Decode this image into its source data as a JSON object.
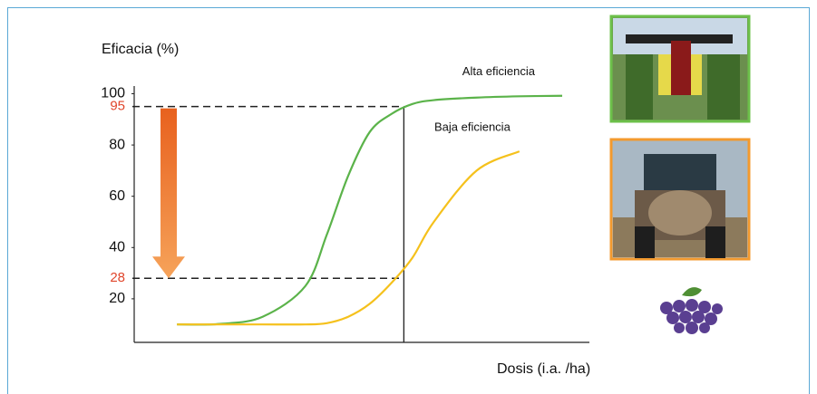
{
  "chart_data": {
    "type": "line",
    "y_label": "Eficacia (%)",
    "x_label": "Dosis (i.a. /ha)",
    "x": [
      1,
      2,
      3,
      4,
      4.5,
      5,
      5.5,
      6,
      6.5,
      7,
      8,
      9,
      10
    ],
    "series": [
      {
        "name": "Alta eficiencia",
        "color": "#5bb34a",
        "values": [
          10,
          10.2,
          13,
          25,
          45,
          68,
          85,
          92,
          96,
          97.5,
          98.5,
          99,
          99.2
        ]
      },
      {
        "name": "Baja eficiencia",
        "color": "#f5c11c",
        "values": [
          10,
          10,
          10,
          10,
          10.5,
          13,
          18,
          26,
          36,
          50,
          70,
          77.5,
          null
        ]
      }
    ],
    "xlim": [
      0,
      10
    ],
    "ylim": [
      3,
      103
    ],
    "yticks": [
      20,
      40,
      60,
      80,
      100
    ],
    "reference_lines": [
      {
        "value": 95,
        "color": "#e0452b"
      },
      {
        "value": 28,
        "color": "#e0452b"
      }
    ],
    "marker_x": 6.3
  }
}
